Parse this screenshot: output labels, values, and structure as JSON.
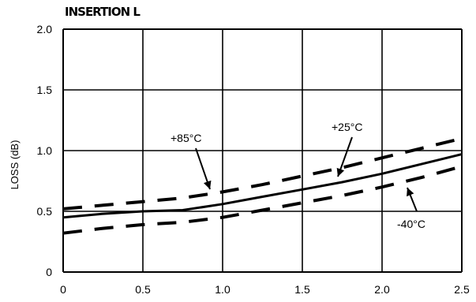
{
  "chart_data": {
    "type": "line",
    "title": "INSERTION L",
    "xlabel": "",
    "ylabel": "LOSS (dB)",
    "xlim": [
      0,
      2.5
    ],
    "ylim": [
      0,
      2.0
    ],
    "xticks": [
      "0",
      "0.5",
      "1.0",
      "1.5",
      "2.0",
      "2.5"
    ],
    "yticks": [
      "0",
      "0.5",
      "1.0",
      "1.5",
      "2.0"
    ],
    "grid": true,
    "series": [
      {
        "name": "+25°C",
        "style": "solid",
        "x": [
          0,
          0.25,
          0.5,
          0.75,
          1.0,
          1.25,
          1.5,
          1.75,
          2.0,
          2.25,
          2.5
        ],
        "y": [
          0.45,
          0.48,
          0.5,
          0.51,
          0.56,
          0.62,
          0.68,
          0.74,
          0.81,
          0.89,
          0.97
        ]
      },
      {
        "name": "+85°C",
        "style": "dashed",
        "x": [
          0,
          0.25,
          0.5,
          0.75,
          1.0,
          1.25,
          1.5,
          1.75,
          2.0,
          2.25,
          2.5
        ],
        "y": [
          0.52,
          0.55,
          0.58,
          0.61,
          0.66,
          0.72,
          0.79,
          0.86,
          0.94,
          1.02,
          1.1
        ]
      },
      {
        "name": "-40°C",
        "style": "dashed",
        "x": [
          0,
          0.25,
          0.5,
          0.75,
          1.0,
          1.25,
          1.5,
          1.75,
          2.0,
          2.25,
          2.5
        ],
        "y": [
          0.32,
          0.36,
          0.39,
          0.41,
          0.45,
          0.51,
          0.57,
          0.63,
          0.7,
          0.78,
          0.87
        ]
      }
    ],
    "annotations": [
      {
        "text": "+85°C",
        "series": "+85°C"
      },
      {
        "text": "+25°C",
        "series": "+25°C"
      },
      {
        "text": "-40°C",
        "series": "-40°C"
      }
    ]
  }
}
